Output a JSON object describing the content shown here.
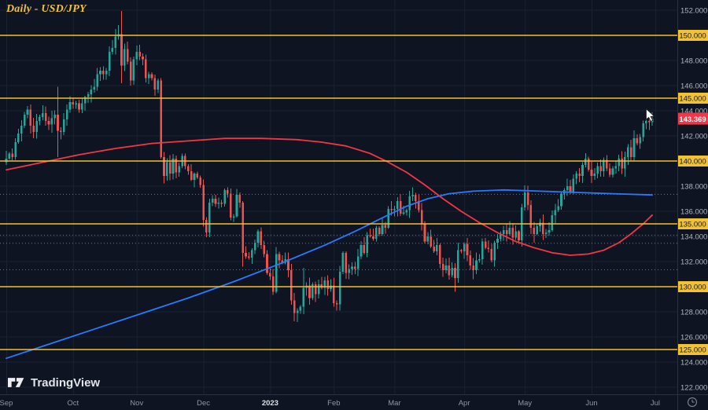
{
  "window": {
    "title": "Daily - USD/JPY"
  },
  "watermark": {
    "text": "TradingView"
  },
  "colors": {
    "background": "#0e1422",
    "grid": "#1a2231",
    "axis_border": "#2a3040",
    "axis_text": "#b2b5be",
    "axis_text_bright": "#dde1e8",
    "axis_text_dim": "#9096a4",
    "candle_up": "#26a69a",
    "candle_down": "#ef5350",
    "ma_red": "#f23645",
    "ma_blue": "#2979ff",
    "level_yellow": "#f2c230",
    "minor_level": "#9aa3b5",
    "price_badge_bg": "#f23645",
    "price_badge_text": "#ffffff",
    "level_badge_text": "#16191f",
    "title": "#f0c243",
    "watermark": "#ffffff"
  },
  "chart_data": {
    "type": "candlestick",
    "title": "Daily - USD/JPY",
    "symbol": "USD/JPY",
    "interval": "Daily",
    "last_price": 143.369,
    "last_price_label": "143.369",
    "ylim": [
      121.4,
      152.8
    ],
    "grid_step": 2,
    "y_axis": {
      "gray_ticks": [
        152,
        148,
        146,
        144,
        142,
        138,
        136,
        134,
        132,
        128,
        126,
        124,
        122
      ],
      "yellow_ticks": [
        150,
        145,
        140,
        135,
        130,
        125
      ]
    },
    "x_axis": {
      "labels": [
        {
          "text": "Sep",
          "i": 0
        },
        {
          "text": "Oct",
          "i": 22
        },
        {
          "text": "Nov",
          "i": 43
        },
        {
          "text": "Dec",
          "i": 65
        },
        {
          "text": "2023",
          "i": 87,
          "emphasis": true
        },
        {
          "text": "Feb",
          "i": 108
        },
        {
          "text": "Mar",
          "i": 128
        },
        {
          "text": "Apr",
          "i": 151
        },
        {
          "text": "May",
          "i": 171
        },
        {
          "text": "Jun",
          "i": 193
        },
        {
          "text": "Jul",
          "i": 214
        }
      ]
    },
    "key_levels": [
      150,
      145,
      140,
      135,
      130,
      125
    ],
    "dotted_levels": [
      137.35,
      134.1,
      133.45,
      131.35
    ],
    "first_open": 139.9,
    "closes": [
      140.2,
      140.6,
      140.3,
      141.5,
      142.2,
      142.8,
      143.7,
      144.1,
      142.8,
      142.3,
      143.2,
      143.5,
      143.8,
      143.2,
      142.9,
      143.4,
      143.7,
      142.4,
      142.3,
      143.3,
      144.1,
      144.7,
      144.5,
      144.6,
      144.1,
      144.6,
      145.1,
      145.3,
      145.7,
      145.9,
      146.9,
      147.2,
      146.9,
      147.2,
      148.7,
      149.0,
      149.9,
      150.1,
      147.6,
      148.9,
      147.9,
      146.4,
      148.1,
      148.7,
      148.3,
      148.1,
      146.6,
      146.9,
      146.6,
      145.7,
      146.4,
      140.3,
      138.8,
      139.9,
      139.0,
      140.2,
      139.1,
      139.6,
      140.4,
      139.6,
      139.2,
      138.5,
      139.0,
      138.7,
      138.1,
      135.3,
      134.3,
      136.7,
      137.0,
      136.6,
      136.7,
      136.6,
      137.7,
      137.4,
      135.5,
      135.6,
      137.3,
      136.7,
      132.7,
      132.4,
      132.3,
      132.9,
      133.5,
      134.4,
      133.3,
      132.6,
      131.1,
      130.8,
      129.6,
      132.6,
      132.1,
      131.9,
      132.2,
      131.3,
      128.9,
      127.9,
      128.1,
      128.4,
      129.9,
      130.1,
      129.1,
      130.2,
      129.4,
      130.2,
      129.9,
      130.5,
      129.8,
      130.1,
      128.7,
      128.6,
      131.2,
      132.7,
      131.1,
      131.4,
      131.6,
      131.4,
      132.4,
      133.3,
      132.7,
      134.1,
      134.0,
      133.8,
      134.7,
      134.2,
      134.9,
      134.7,
      136.2,
      136.1,
      136.2,
      136.8,
      135.8,
      135.9,
      136.1,
      137.2,
      137.3,
      136.8,
      136.1,
      135.0,
      133.6,
      134.0,
      133.2,
      132.8,
      133.3,
      131.8,
      131.3,
      131.7,
      130.9,
      131.5,
      130.7,
      132.9,
      132.8,
      133.4,
      132.5,
      131.7,
      131.3,
      132.1,
      132.2,
      133.6,
      133.1,
      133.0,
      132.1,
      133.5,
      133.8,
      134.2,
      134.5,
      134.2,
      134.7,
      133.9,
      134.4,
      133.7,
      136.3,
      137.5,
      136.5,
      134.7,
      134.2,
      134.8,
      135.1,
      134.2,
      134.3,
      134.5,
      135.7,
      136.1,
      136.4,
      137.4,
      137.7,
      138.0,
      137.5,
      138.6,
      139.0,
      138.8,
      139.7,
      140.2,
      139.3,
      138.8,
      139.0,
      139.6,
      139.2,
      140.1,
      139.4,
      138.9,
      139.4,
      139.6,
      140.2,
      139.4,
      140.3,
      141.1,
      140.3,
      141.8,
      141.4,
      141.9,
      143.0,
      143.2,
      143.1,
      143.37
    ],
    "wick_overrides": {
      "17": {
        "h": 145.9,
        "l": 140.3
      },
      "37": {
        "h": 150.8
      },
      "38": {
        "h": 151.95,
        "l": 146.2
      },
      "51": {
        "h": 146.6,
        "l": 140.2
      },
      "78": {
        "l": 131.6
      },
      "96": {
        "l": 127.2
      },
      "98": {
        "h": 131.5
      },
      "109": {
        "l": 128.1
      },
      "134": {
        "h": 137.91
      },
      "148": {
        "l": 129.6
      },
      "154": {
        "l": 130.6
      },
      "170": {
        "h": 136.6
      },
      "174": {
        "l": 133.5
      },
      "213": {
        "h": 143.87
      }
    },
    "series_overlays": [
      {
        "name": "red-ma",
        "color_key": "ma_red",
        "points": [
          [
            0,
            139.3
          ],
          [
            12,
            139.9
          ],
          [
            24,
            140.5
          ],
          [
            36,
            141.0
          ],
          [
            48,
            141.4
          ],
          [
            60,
            141.6
          ],
          [
            72,
            141.8
          ],
          [
            84,
            141.8
          ],
          [
            96,
            141.7
          ],
          [
            104,
            141.5
          ],
          [
            112,
            141.2
          ],
          [
            120,
            140.6
          ],
          [
            126,
            139.9
          ],
          [
            132,
            139.1
          ],
          [
            138,
            138.1
          ],
          [
            144,
            137.0
          ],
          [
            150,
            136.0
          ],
          [
            156,
            135.1
          ],
          [
            162,
            134.3
          ],
          [
            168,
            133.6
          ],
          [
            174,
            133.1
          ],
          [
            180,
            132.7
          ],
          [
            186,
            132.5
          ],
          [
            192,
            132.6
          ],
          [
            197,
            132.9
          ],
          [
            202,
            133.5
          ],
          [
            206,
            134.2
          ],
          [
            210,
            135.0
          ],
          [
            213,
            135.7
          ]
        ]
      },
      {
        "name": "blue-ma",
        "color_key": "ma_blue",
        "points": [
          [
            0,
            124.3
          ],
          [
            15,
            125.5
          ],
          [
            30,
            126.7
          ],
          [
            45,
            127.9
          ],
          [
            60,
            129.1
          ],
          [
            75,
            130.4
          ],
          [
            90,
            131.8
          ],
          [
            105,
            133.3
          ],
          [
            115,
            134.4
          ],
          [
            125,
            135.6
          ],
          [
            132,
            136.4
          ],
          [
            139,
            137.0
          ],
          [
            146,
            137.4
          ],
          [
            154,
            137.6
          ],
          [
            164,
            137.7
          ],
          [
            176,
            137.6
          ],
          [
            188,
            137.5
          ],
          [
            200,
            137.4
          ],
          [
            213,
            137.3
          ]
        ]
      }
    ],
    "cursor": {
      "index": 211,
      "price": 144.15
    }
  }
}
